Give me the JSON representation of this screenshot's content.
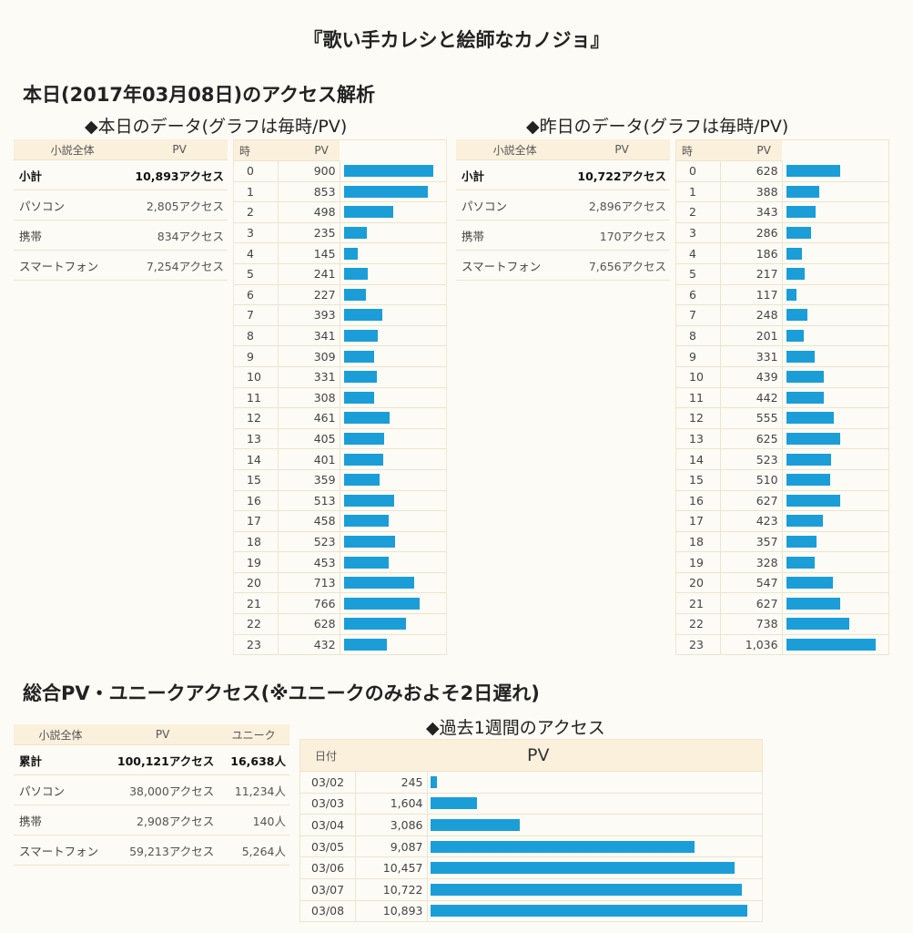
{
  "title": "『歌い手カレシと絵師なカノジョ』",
  "today_heading": "本日(2017年03月08日)のアクセス解析",
  "today": {
    "heading": "◆本日のデータ(グラフは毎時/PV)",
    "summary": {
      "headers": [
        "小説全体",
        "PV"
      ],
      "rows": [
        {
          "label": "小計",
          "value": "10,893アクセス"
        },
        {
          "label": "パソコン",
          "value": "2,805アクセス"
        },
        {
          "label": "携帯",
          "value": "834アクセス"
        },
        {
          "label": "スマートフォン",
          "value": "7,254アクセス"
        }
      ]
    },
    "hourly_headers": [
      "時",
      "PV"
    ],
    "hourly": [
      {
        "h": "0",
        "pv": "900"
      },
      {
        "h": "1",
        "pv": "853"
      },
      {
        "h": "2",
        "pv": "498"
      },
      {
        "h": "3",
        "pv": "235"
      },
      {
        "h": "4",
        "pv": "145"
      },
      {
        "h": "5",
        "pv": "241"
      },
      {
        "h": "6",
        "pv": "227"
      },
      {
        "h": "7",
        "pv": "393"
      },
      {
        "h": "8",
        "pv": "341"
      },
      {
        "h": "9",
        "pv": "309"
      },
      {
        "h": "10",
        "pv": "331"
      },
      {
        "h": "11",
        "pv": "308"
      },
      {
        "h": "12",
        "pv": "461"
      },
      {
        "h": "13",
        "pv": "405"
      },
      {
        "h": "14",
        "pv": "401"
      },
      {
        "h": "15",
        "pv": "359"
      },
      {
        "h": "16",
        "pv": "513"
      },
      {
        "h": "17",
        "pv": "458"
      },
      {
        "h": "18",
        "pv": "523"
      },
      {
        "h": "19",
        "pv": "453"
      },
      {
        "h": "20",
        "pv": "713"
      },
      {
        "h": "21",
        "pv": "766"
      },
      {
        "h": "22",
        "pv": "628"
      },
      {
        "h": "23",
        "pv": "432"
      }
    ]
  },
  "yesterday": {
    "heading": "◆昨日のデータ(グラフは毎時/PV)",
    "summary": {
      "headers": [
        "小説全体",
        "PV"
      ],
      "rows": [
        {
          "label": "小計",
          "value": "10,722アクセス"
        },
        {
          "label": "パソコン",
          "value": "2,896アクセス"
        },
        {
          "label": "携帯",
          "value": "170アクセス"
        },
        {
          "label": "スマートフォン",
          "value": "7,656アクセス"
        }
      ]
    },
    "hourly_headers": [
      "時",
      "PV"
    ],
    "hourly": [
      {
        "h": "0",
        "pv": "628"
      },
      {
        "h": "1",
        "pv": "388"
      },
      {
        "h": "2",
        "pv": "343"
      },
      {
        "h": "3",
        "pv": "286"
      },
      {
        "h": "4",
        "pv": "186"
      },
      {
        "h": "5",
        "pv": "217"
      },
      {
        "h": "6",
        "pv": "117"
      },
      {
        "h": "7",
        "pv": "248"
      },
      {
        "h": "8",
        "pv": "201"
      },
      {
        "h": "9",
        "pv": "331"
      },
      {
        "h": "10",
        "pv": "439"
      },
      {
        "h": "11",
        "pv": "442"
      },
      {
        "h": "12",
        "pv": "555"
      },
      {
        "h": "13",
        "pv": "625"
      },
      {
        "h": "14",
        "pv": "523"
      },
      {
        "h": "15",
        "pv": "510"
      },
      {
        "h": "16",
        "pv": "627"
      },
      {
        "h": "17",
        "pv": "423"
      },
      {
        "h": "18",
        "pv": "357"
      },
      {
        "h": "19",
        "pv": "328"
      },
      {
        "h": "20",
        "pv": "547"
      },
      {
        "h": "21",
        "pv": "627"
      },
      {
        "h": "22",
        "pv": "738"
      },
      {
        "h": "23",
        "pv": "1,036"
      }
    ]
  },
  "total_heading": "総合PV・ユニークアクセス(※ユニークのみおよそ2日遅れ)",
  "total_summary": {
    "headers": [
      "小説全体",
      "PV",
      "ユニーク"
    ],
    "rows": [
      {
        "label": "累計",
        "pv": "100,121アクセス",
        "unique": "16,638人"
      },
      {
        "label": "パソコン",
        "pv": "38,000アクセス",
        "unique": "11,234人"
      },
      {
        "label": "携帯",
        "pv": "2,908アクセス",
        "unique": "140人"
      },
      {
        "label": "スマートフォン",
        "pv": "59,213アクセス",
        "unique": "5,264人"
      }
    ]
  },
  "weekly": {
    "heading": "◆過去1週間のアクセス",
    "headers": [
      "日付",
      "PV"
    ],
    "rows": [
      {
        "date": "03/02",
        "pv": "245"
      },
      {
        "date": "03/03",
        "pv": "1,604"
      },
      {
        "date": "03/04",
        "pv": "3,086"
      },
      {
        "date": "03/05",
        "pv": "9,087"
      },
      {
        "date": "03/06",
        "pv": "10,457"
      },
      {
        "date": "03/07",
        "pv": "10,722"
      },
      {
        "date": "03/08",
        "pv": "10,893"
      }
    ]
  },
  "colors": {
    "bar": "#1b9ed8",
    "header_bg": "#fbf0dc",
    "border": "#ede4cf",
    "page_bg": "#fcfbf5"
  }
}
